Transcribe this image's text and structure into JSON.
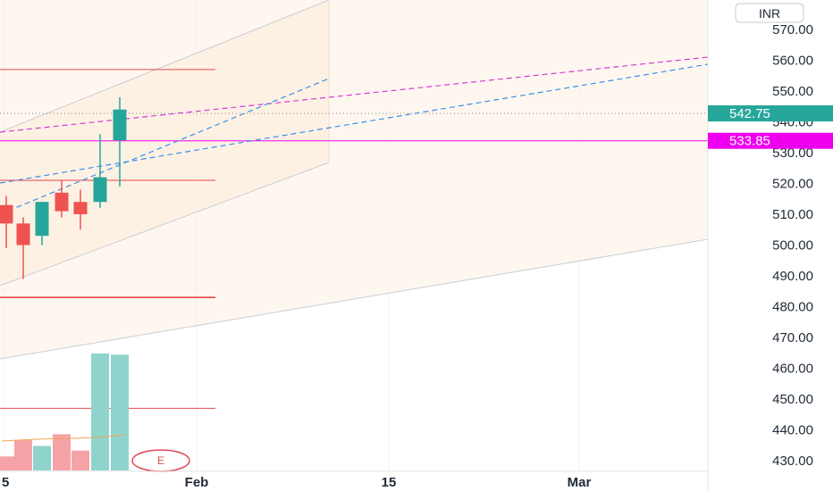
{
  "colors": {
    "up": "#26a69a",
    "down": "#ef5350",
    "vol_up": "#8fd3cd",
    "vol_down": "#f5a3a6",
    "channel_fill": "#fdf0e2",
    "channel_line": "#c9cdd6",
    "red_line": "#e5484d",
    "magenta": "#ee00ee",
    "dashed_blue": "#3b8fe8",
    "dashed_magenta": "#d63ad6",
    "grid": "#eef0f3",
    "ma": "#f0a35a"
  },
  "chart_data": {
    "type": "candlestick",
    "currency": "INR",
    "y_axis": {
      "ticks": [
        "570.00",
        "560.00",
        "550.00",
        "540.00",
        "530.00",
        "520.00",
        "510.00",
        "500.00",
        "490.00",
        "480.00",
        "470.00",
        "460.00",
        "450.00",
        "440.00",
        "430.00"
      ],
      "ylim": [
        426,
        575
      ]
    },
    "x_axis": {
      "labels": [
        "5",
        "Feb",
        "15",
        "Mar"
      ]
    },
    "candles": [
      {
        "open": 513,
        "high": 516,
        "low": 499,
        "close": 507,
        "dir": "down"
      },
      {
        "open": 507,
        "high": 509,
        "low": 489,
        "close": 500,
        "dir": "down"
      },
      {
        "open": 503,
        "high": 514,
        "low": 500,
        "close": 514,
        "dir": "up"
      },
      {
        "open": 517,
        "high": 521,
        "low": 509,
        "close": 511,
        "dir": "down"
      },
      {
        "open": 514,
        "high": 518,
        "low": 505,
        "close": 510,
        "dir": "down"
      },
      {
        "open": 514,
        "high": 536,
        "low": 512,
        "close": 522,
        "dir": "up"
      },
      {
        "open": 534,
        "high": 548,
        "low": 519,
        "close": 544,
        "dir": "up"
      }
    ],
    "volume": [
      {
        "value": 0.12,
        "dir": "down"
      },
      {
        "value": 0.26,
        "dir": "down"
      },
      {
        "value": 0.21,
        "dir": "up"
      },
      {
        "value": 0.31,
        "dir": "down"
      },
      {
        "value": 0.17,
        "dir": "down"
      },
      {
        "value": 1.0,
        "dir": "up"
      },
      {
        "value": 0.99,
        "dir": "up"
      }
    ],
    "horizontal_levels": [
      557,
      521,
      483,
      447
    ],
    "magenta_level": 533.85,
    "last_price": 542.75,
    "price_tags": [
      {
        "label": "542.75",
        "value": 542.75,
        "color": "#26a69a"
      },
      {
        "label": "533.85",
        "value": 533.85,
        "color": "#ee00ee"
      }
    ],
    "event_marker": "E"
  }
}
